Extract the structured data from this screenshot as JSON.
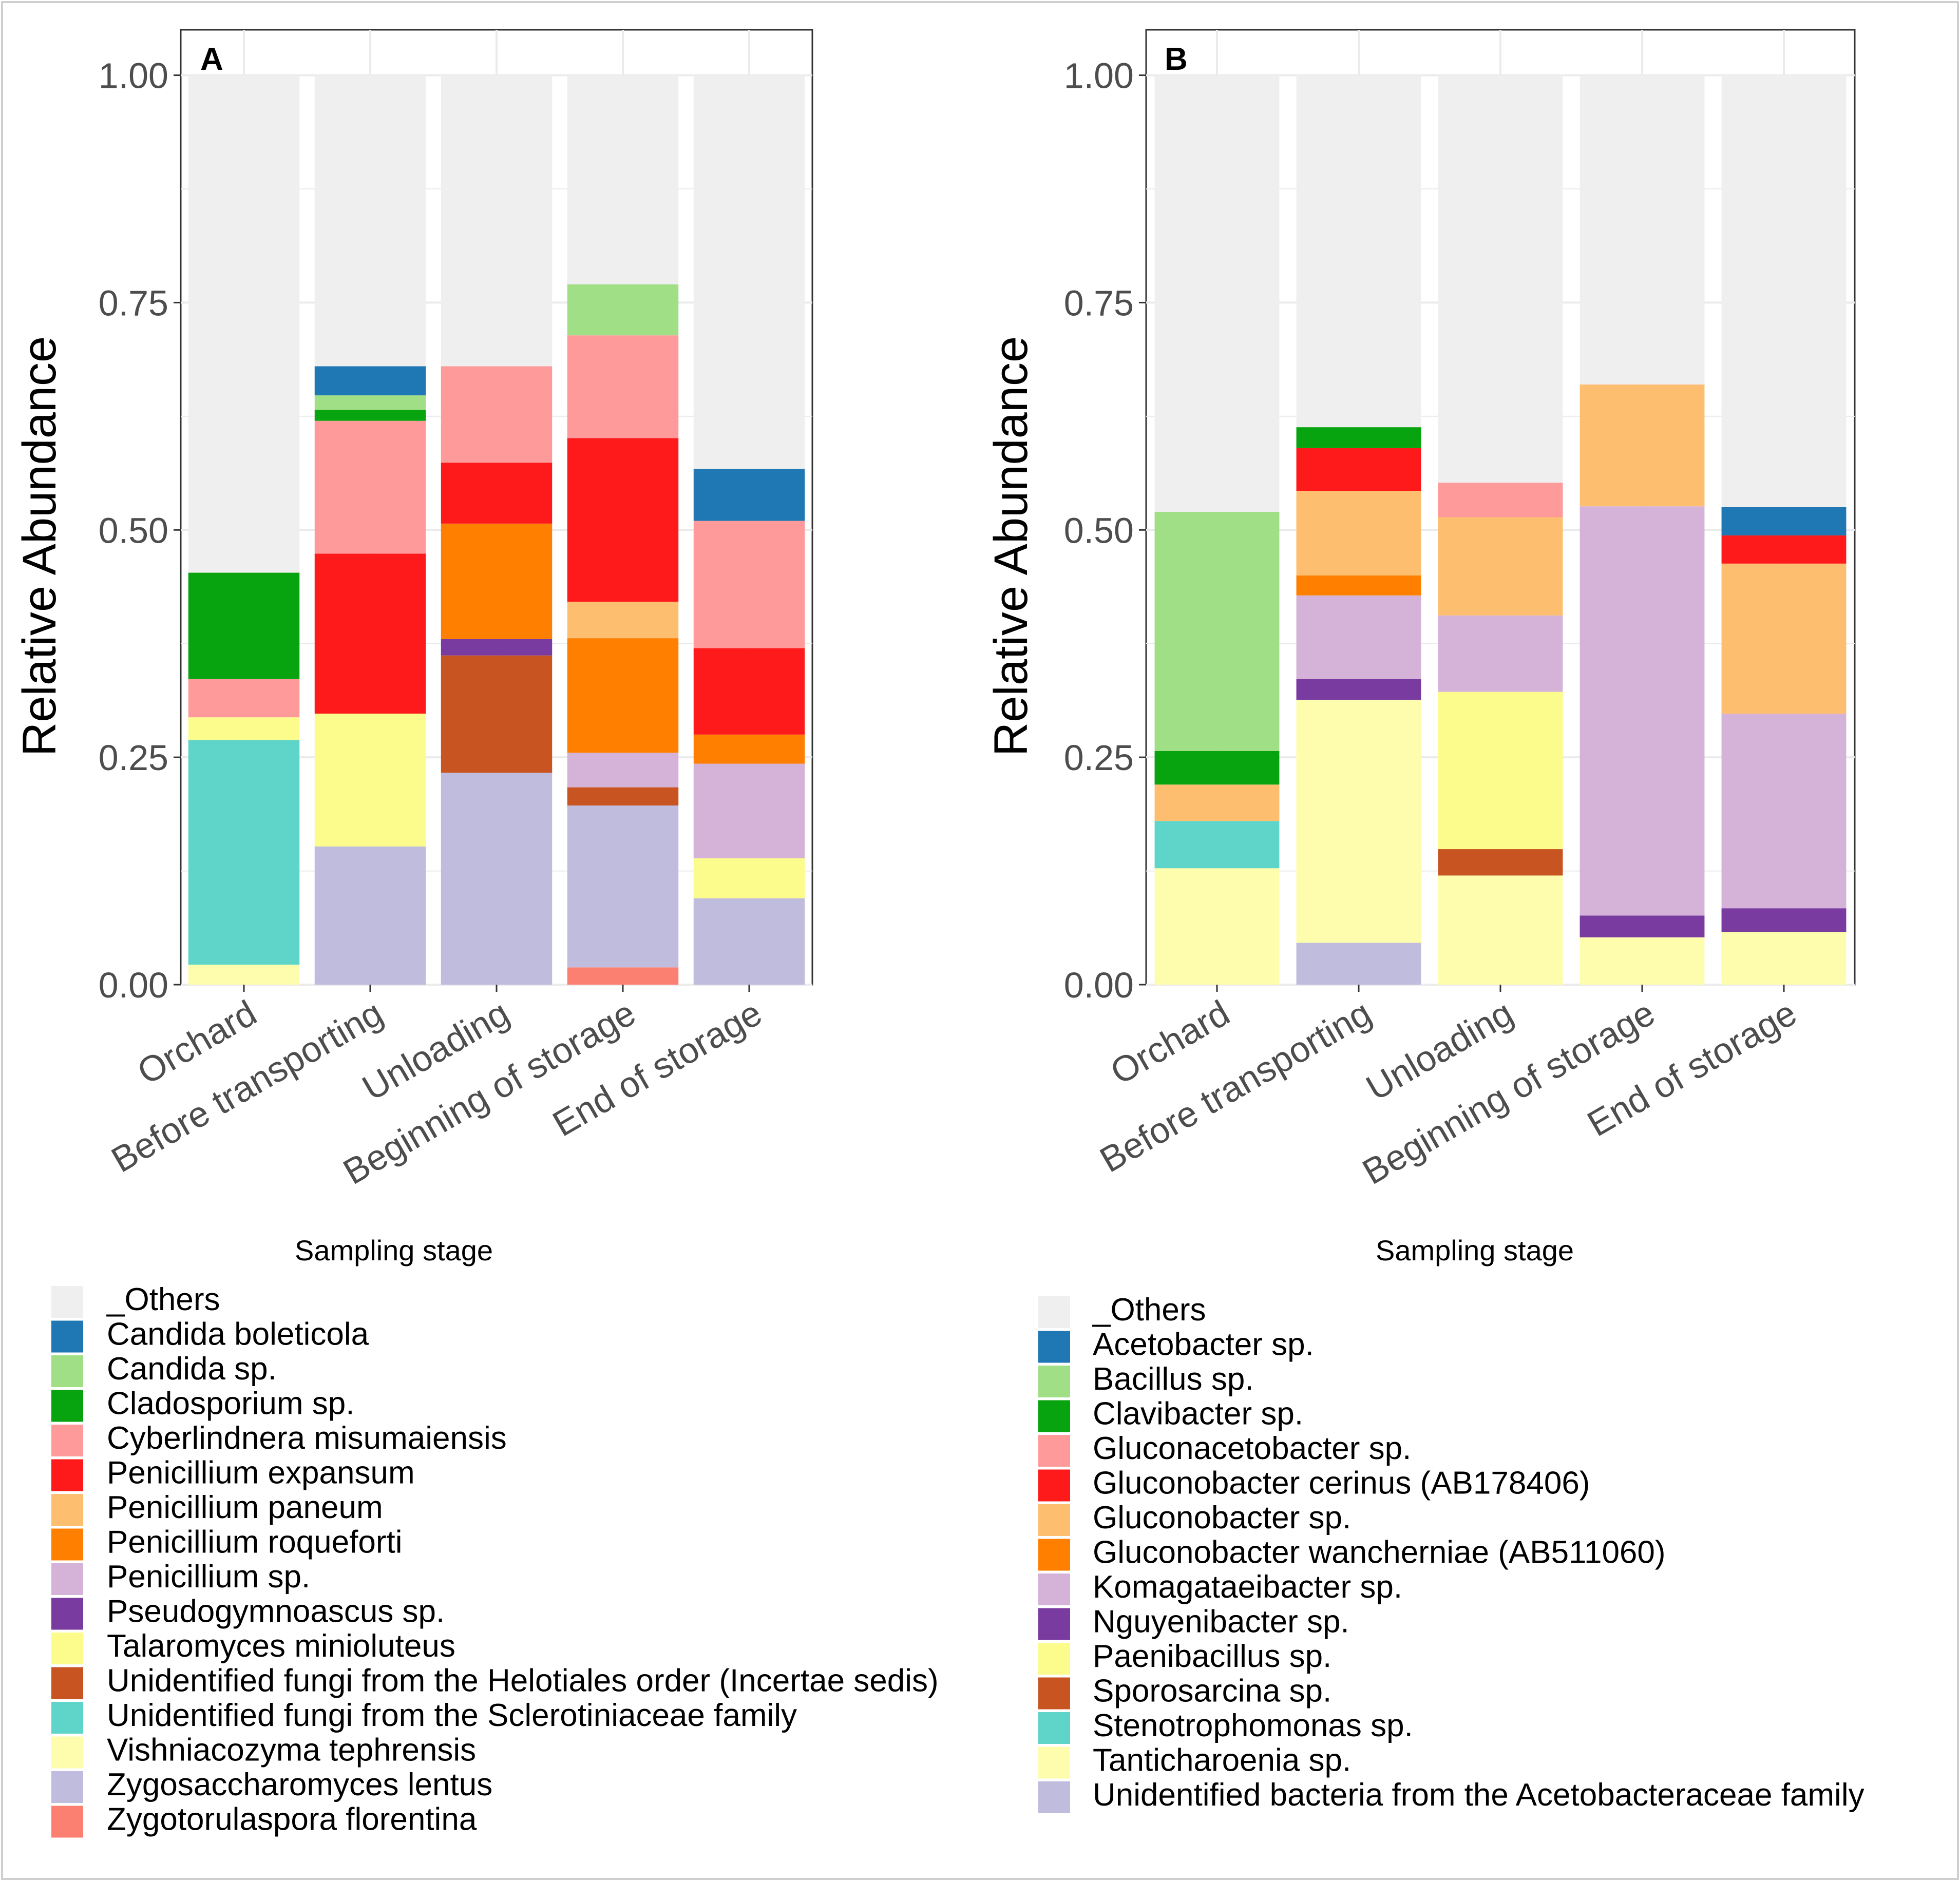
{
  "chart_data": [
    {
      "type": "bar",
      "stacked": true,
      "panel_label": "A",
      "title": "",
      "xlabel": "Sampling stage",
      "ylabel": "Relative Abundance",
      "ylim": [
        0,
        1.05
      ],
      "yticks": [
        "0.00",
        "0.25",
        "0.50",
        "0.75",
        "1.00"
      ],
      "categories": [
        "Orchard",
        "Before transporting",
        "Unloading",
        "Beginning of storage",
        "End of storage"
      ],
      "legend_position": "bottom-left",
      "series": [
        {
          "name": "_Others",
          "color": "#efefef",
          "values": [
            0.547,
            0.32,
            0.32,
            0.23,
            0.433
          ]
        },
        {
          "name": "Candida boleticola",
          "color": "#1f78b4",
          "values": [
            0,
            0.032,
            0,
            0,
            0.057
          ]
        },
        {
          "name": "Candida sp.",
          "color": "#a1df87",
          "values": [
            0,
            0.016,
            0,
            0.056,
            0
          ]
        },
        {
          "name": "Cladosporium sp.",
          "color": "#07a40f",
          "values": [
            0.117,
            0.012,
            0,
            0,
            0
          ]
        },
        {
          "name": "Cyberlindnera misumaiensis",
          "color": "#fe9a9a",
          "values": [
            0.042,
            0.146,
            0.106,
            0.113,
            0.14
          ]
        },
        {
          "name": "Penicillium expansum",
          "color": "#fe1a1a",
          "values": [
            0,
            0.176,
            0.067,
            0.18,
            0.095
          ]
        },
        {
          "name": "Penicillium paneum",
          "color": "#fdbf6f",
          "values": [
            0,
            0,
            0,
            0.04,
            0
          ]
        },
        {
          "name": "Penicillium roqueforti",
          "color": "#ff7f00",
          "values": [
            0,
            0,
            0.127,
            0.126,
            0.032
          ]
        },
        {
          "name": "Penicillium sp.",
          "color": "#d5b3d9",
          "values": [
            0,
            0,
            0,
            0.038,
            0.104
          ]
        },
        {
          "name": "Pseudogymnoascus sp.",
          "color": "#7a3ba0",
          "values": [
            0,
            0,
            0.018,
            0,
            0
          ]
        },
        {
          "name": "Talaromyces minioluteus",
          "color": "#fcfc8c",
          "values": [
            0.025,
            0.146,
            0,
            0,
            0.044
          ]
        },
        {
          "name": "Unidentified fungi from the Helotiales order (Incertae sedis)",
          "color": "#c75421",
          "values": [
            0,
            0,
            0.129,
            0.02,
            0
          ]
        },
        {
          "name": "Unidentified fungi from the Sclerotiniaceae family",
          "color": "#5fd5c9",
          "values": [
            0.247,
            0,
            0,
            0,
            0
          ]
        },
        {
          "name": "Vishniacozyma tephrensis",
          "color": "#fefdae",
          "values": [
            0.022,
            0,
            0,
            0,
            0
          ]
        },
        {
          "name": "Zygosaccharomyces lentus",
          "color": "#c0bcdd",
          "values": [
            0,
            0.152,
            0.233,
            0.178,
            0.095
          ]
        },
        {
          "name": "Zygotorulaspora florentina",
          "color": "#fb8072",
          "values": [
            0,
            0,
            0,
            0.019,
            0
          ]
        }
      ]
    },
    {
      "type": "bar",
      "stacked": true,
      "panel_label": "B",
      "title": "",
      "xlabel": "Sampling stage",
      "ylabel": "Relative Abundance",
      "ylim": [
        0,
        1.05
      ],
      "yticks": [
        "0.00",
        "0.25",
        "0.50",
        "0.75",
        "1.00"
      ],
      "categories": [
        "Orchard",
        "Before transporting",
        "Unloading",
        "Beginning of storage",
        "End of storage"
      ],
      "legend_position": "bottom-right",
      "series": [
        {
          "name": "_Others",
          "color": "#efefef",
          "values": [
            0.48,
            0.387,
            0.448,
            0.34,
            0.475
          ]
        },
        {
          "name": "Acetobacter sp.",
          "color": "#1f78b4",
          "values": [
            0,
            0,
            0,
            0,
            0.031
          ]
        },
        {
          "name": "Bacillus sp.",
          "color": "#a1df87",
          "values": [
            0.263,
            0,
            0,
            0,
            0
          ]
        },
        {
          "name": "Clavibacter sp.",
          "color": "#07a40f",
          "values": [
            0.037,
            0.023,
            0,
            0,
            0
          ]
        },
        {
          "name": "Gluconacetobacter sp.",
          "color": "#fe9a9a",
          "values": [
            0,
            0,
            0.038,
            0,
            0
          ]
        },
        {
          "name": "Gluconobacter cerinus (AB178406)",
          "color": "#fe1a1a",
          "values": [
            0,
            0.047,
            0,
            0,
            0.031
          ]
        },
        {
          "name": "Gluconobacter sp.",
          "color": "#fdbf6f",
          "values": [
            0.04,
            0.093,
            0.108,
            0.134,
            0.165
          ]
        },
        {
          "name": "Gluconobacter wancherniae (AB511060)",
          "color": "#ff7f00",
          "values": [
            0,
            0.022,
            0,
            0,
            0
          ]
        },
        {
          "name": "Komagataeibacter sp.",
          "color": "#d5b3d9",
          "values": [
            0,
            0.092,
            0.084,
            0.45,
            0.214
          ]
        },
        {
          "name": "Nguyenibacter sp.",
          "color": "#7a3ba0",
          "values": [
            0,
            0.023,
            0,
            0.024,
            0.026
          ]
        },
        {
          "name": "Paenibacillus sp.",
          "color": "#fcfc8c",
          "values": [
            0,
            0,
            0.173,
            0,
            0
          ]
        },
        {
          "name": "Sporosarcina sp.",
          "color": "#c75421",
          "values": [
            0,
            0,
            0.029,
            0,
            0
          ]
        },
        {
          "name": "Stenotrophomonas sp.",
          "color": "#5fd5c9",
          "values": [
            0.052,
            0,
            0,
            0,
            0
          ]
        },
        {
          "name": "Tanticharoenia sp.",
          "color": "#fefdae",
          "values": [
            0.128,
            0.267,
            0.12,
            0.052,
            0.058
          ]
        },
        {
          "name": "Unidentified bacteria from the Acetobacteraceae family",
          "color": "#c0bcdd",
          "values": [
            0,
            0.046,
            0,
            0,
            0
          ]
        }
      ]
    }
  ]
}
